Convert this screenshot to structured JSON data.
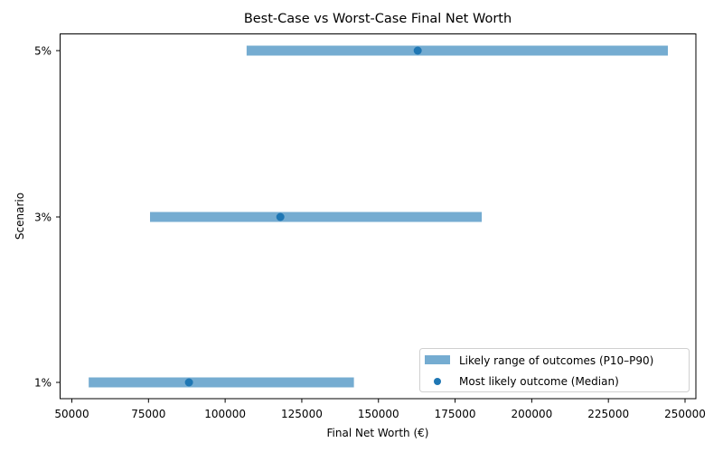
{
  "chart_data": {
    "type": "range-dot",
    "title": "Best-Case vs Worst-Case Final Net Worth",
    "xlabel": "Final Net Worth (€)",
    "ylabel": "Scenario",
    "xlim": [
      46000,
      254000
    ],
    "xticks": [
      50000,
      75000,
      100000,
      125000,
      150000,
      175000,
      200000,
      225000,
      250000
    ],
    "xtick_labels": [
      "50000",
      "75000",
      "100000",
      "125000",
      "150000",
      "175000",
      "200000",
      "225000",
      "250000"
    ],
    "categories": [
      "1%",
      "3%",
      "5%"
    ],
    "series": [
      {
        "name": "Likely range of outcomes (P10–P90)",
        "kind": "range-bar",
        "color": "#75acd1",
        "low": [
          55500,
          75500,
          107000
        ],
        "high": [
          142000,
          183700,
          244400
        ]
      },
      {
        "name": "Most likely outcome (Median)",
        "kind": "scatter",
        "color": "#1f77b4",
        "values": [
          88200,
          118000,
          162800
        ]
      }
    ],
    "legend_position": "lower right",
    "grid": false
  },
  "legend": {
    "items": [
      {
        "label": "Likely range of outcomes (P10–P90)"
      },
      {
        "label": "Most likely outcome (Median)"
      }
    ]
  }
}
